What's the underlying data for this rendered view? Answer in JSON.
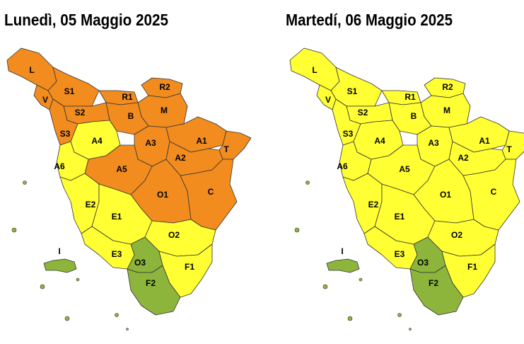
{
  "maps": [
    {
      "title": "Lunedì, 05 Maggio 2025",
      "zones": [
        {
          "label": "L",
          "color": "#f28c1e"
        },
        {
          "label": "V",
          "color": "#f28c1e"
        },
        {
          "label": "S1",
          "color": "#f28c1e"
        },
        {
          "label": "R1",
          "color": "#f28c1e"
        },
        {
          "label": "R2",
          "color": "#f28c1e"
        },
        {
          "label": "M",
          "color": "#f28c1e"
        },
        {
          "label": "B",
          "color": "#f28c1e"
        },
        {
          "label": "S2",
          "color": "#f28c1e"
        },
        {
          "label": "S3",
          "color": "#f28c1e"
        },
        {
          "label": "A4",
          "color": "#ffff33"
        },
        {
          "label": "A3",
          "color": "#f28c1e"
        },
        {
          "label": "A1",
          "color": "#f28c1e"
        },
        {
          "label": "T",
          "color": "#f28c1e"
        },
        {
          "label": "A2",
          "color": "#f28c1e"
        },
        {
          "label": "A5",
          "color": "#f28c1e"
        },
        {
          "label": "A6",
          "color": "#ffff33"
        },
        {
          "label": "O1",
          "color": "#f28c1e"
        },
        {
          "label": "C",
          "color": "#f28c1e"
        },
        {
          "label": "E2",
          "color": "#ffff33"
        },
        {
          "label": "E1",
          "color": "#ffff33"
        },
        {
          "label": "O2",
          "color": "#ffff33"
        },
        {
          "label": "E3",
          "color": "#ffff33"
        },
        {
          "label": "O3",
          "color": "#8db53c"
        },
        {
          "label": "F1",
          "color": "#ffff33"
        },
        {
          "label": "F2",
          "color": "#8db53c"
        },
        {
          "label": "I",
          "color": "#8db53c"
        }
      ]
    },
    {
      "title": "Martedí, 06 Maggio 2025",
      "zones": [
        {
          "label": "L",
          "color": "#ffff33"
        },
        {
          "label": "V",
          "color": "#ffff33"
        },
        {
          "label": "S1",
          "color": "#ffff33"
        },
        {
          "label": "R1",
          "color": "#ffff33"
        },
        {
          "label": "R2",
          "color": "#ffff33"
        },
        {
          "label": "M",
          "color": "#ffff33"
        },
        {
          "label": "B",
          "color": "#ffff33"
        },
        {
          "label": "S2",
          "color": "#ffff33"
        },
        {
          "label": "S3",
          "color": "#ffff33"
        },
        {
          "label": "A4",
          "color": "#ffff33"
        },
        {
          "label": "A3",
          "color": "#ffff33"
        },
        {
          "label": "A1",
          "color": "#ffff33"
        },
        {
          "label": "T",
          "color": "#ffff33"
        },
        {
          "label": "A2",
          "color": "#ffff33"
        },
        {
          "label": "A5",
          "color": "#ffff33"
        },
        {
          "label": "A6",
          "color": "#ffff33"
        },
        {
          "label": "O1",
          "color": "#ffff33"
        },
        {
          "label": "C",
          "color": "#ffff33"
        },
        {
          "label": "E2",
          "color": "#ffff33"
        },
        {
          "label": "E1",
          "color": "#ffff33"
        },
        {
          "label": "O2",
          "color": "#ffff33"
        },
        {
          "label": "E3",
          "color": "#ffff33"
        },
        {
          "label": "O3",
          "color": "#8db53c"
        },
        {
          "label": "F1",
          "color": "#ffff33"
        },
        {
          "label": "F2",
          "color": "#8db53c"
        },
        {
          "label": "I",
          "color": "#8db53c"
        }
      ]
    }
  ]
}
